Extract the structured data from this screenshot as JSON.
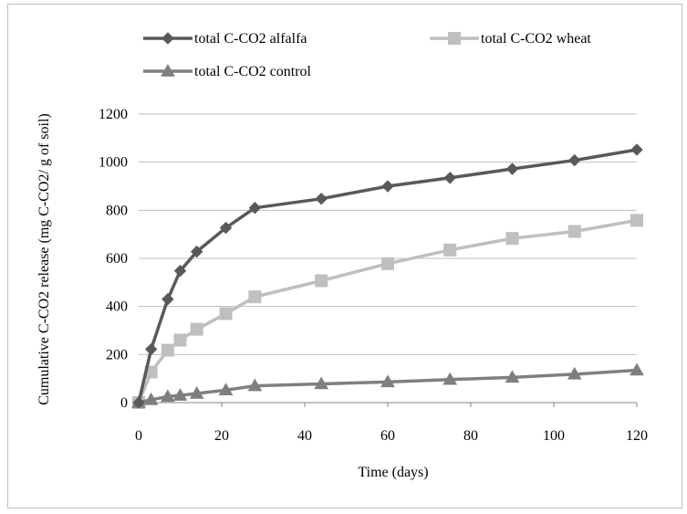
{
  "chart_data": {
    "type": "line",
    "title": "",
    "xlabel": "Time (days)",
    "ylabel": "Cumulative C-CO2 release (mg C-CO2/ g of soil)",
    "xlim": [
      0,
      120
    ],
    "ylim": [
      0,
      1200
    ],
    "x_ticks": [
      0,
      20,
      40,
      60,
      80,
      100,
      120
    ],
    "y_ticks": [
      0,
      200,
      400,
      600,
      800,
      1000,
      1200
    ],
    "grid": "horizontal",
    "legend_position": "top",
    "x": [
      0,
      3,
      7,
      10,
      14,
      21,
      28,
      44,
      60,
      75,
      90,
      105,
      120
    ],
    "series": [
      {
        "name": "total C-CO2 alfalfa",
        "color": "#595959",
        "marker": "diamond",
        "values": [
          0,
          222,
          430,
          548,
          628,
          727,
          810,
          848,
          900,
          935,
          972,
          1008,
          1052
        ]
      },
      {
        "name": "total C-CO2 wheat",
        "color": "#bfbfbf",
        "marker": "square",
        "values": [
          0,
          127,
          218,
          260,
          305,
          370,
          440,
          507,
          578,
          635,
          683,
          712,
          758
        ]
      },
      {
        "name": "total C-CO2 control",
        "color": "#7f7f7f",
        "marker": "triangle",
        "values": [
          0,
          12,
          25,
          30,
          38,
          52,
          70,
          78,
          86,
          96,
          105,
          118,
          135
        ]
      }
    ]
  }
}
